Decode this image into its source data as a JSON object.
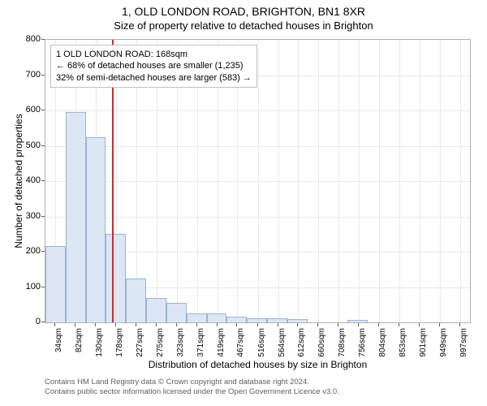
{
  "chart": {
    "type": "histogram",
    "title_line1": "1, OLD LONDON ROAD, BRIGHTON, BN1 8XR",
    "title_line2": "Size of property relative to detached houses in Brighton",
    "title_fontsize": 14,
    "subtitle_fontsize": 13,
    "ylabel": "Number of detached properties",
    "xlabel": "Distribution of detached houses by size in Brighton",
    "label_fontsize": 12,
    "tick_fontsize": 11,
    "background_color": "#ffffff",
    "plot_border_color": "#b0b0b0",
    "grid_color": "#e8e8f0",
    "bar_fill": "#dce6f4",
    "bar_stroke": "#9ab3d5",
    "marker_color": "#d62728",
    "marker_x_sqm": 168,
    "ylim": [
      0,
      800
    ],
    "ytick_step": 100,
    "xlim_sqm": [
      10,
      1021
    ],
    "xticks_sqm": [
      34,
      82,
      130,
      178,
      227,
      275,
      323,
      371,
      419,
      467,
      516,
      564,
      612,
      660,
      708,
      756,
      804,
      853,
      901,
      949,
      997
    ],
    "xtick_labels": [
      "34sqm",
      "82sqm",
      "130sqm",
      "178sqm",
      "227sqm",
      "275sqm",
      "323sqm",
      "371sqm",
      "419sqm",
      "467sqm",
      "516sqm",
      "564sqm",
      "612sqm",
      "660sqm",
      "708sqm",
      "756sqm",
      "804sqm",
      "853sqm",
      "901sqm",
      "949sqm",
      "997sqm"
    ],
    "bin_width_sqm": 48,
    "bars": [
      {
        "x_start": 10,
        "count": 215
      },
      {
        "x_start": 58,
        "count": 595
      },
      {
        "x_start": 106,
        "count": 525
      },
      {
        "x_start": 154,
        "count": 250
      },
      {
        "x_start": 202,
        "count": 125
      },
      {
        "x_start": 250,
        "count": 70
      },
      {
        "x_start": 298,
        "count": 55
      },
      {
        "x_start": 346,
        "count": 25
      },
      {
        "x_start": 394,
        "count": 25
      },
      {
        "x_start": 442,
        "count": 15
      },
      {
        "x_start": 490,
        "count": 12
      },
      {
        "x_start": 538,
        "count": 12
      },
      {
        "x_start": 586,
        "count": 10
      },
      {
        "x_start": 634,
        "count": 0
      },
      {
        "x_start": 682,
        "count": 0
      },
      {
        "x_start": 730,
        "count": 8
      },
      {
        "x_start": 778,
        "count": 0
      },
      {
        "x_start": 826,
        "count": 0
      },
      {
        "x_start": 874,
        "count": 0
      },
      {
        "x_start": 922,
        "count": 0
      },
      {
        "x_start": 970,
        "count": 0
      }
    ],
    "annotation": {
      "lines": [
        "1 OLD LONDON ROAD: 168sqm",
        "← 68% of detached houses are smaller (1,235)",
        "32% of semi-detached houses are larger (583) →"
      ],
      "fontsize": 11,
      "border_color": "#c0c0c0",
      "bg_color": "rgba(255,255,255,0.92)"
    },
    "footer_lines": [
      "Contains HM Land Registry data © Crown copyright and database right 2024.",
      "Contains public sector information licensed under the Open Government Licence v3.0."
    ],
    "footer_color": "#606060",
    "footer_fontsize": 9.5
  }
}
